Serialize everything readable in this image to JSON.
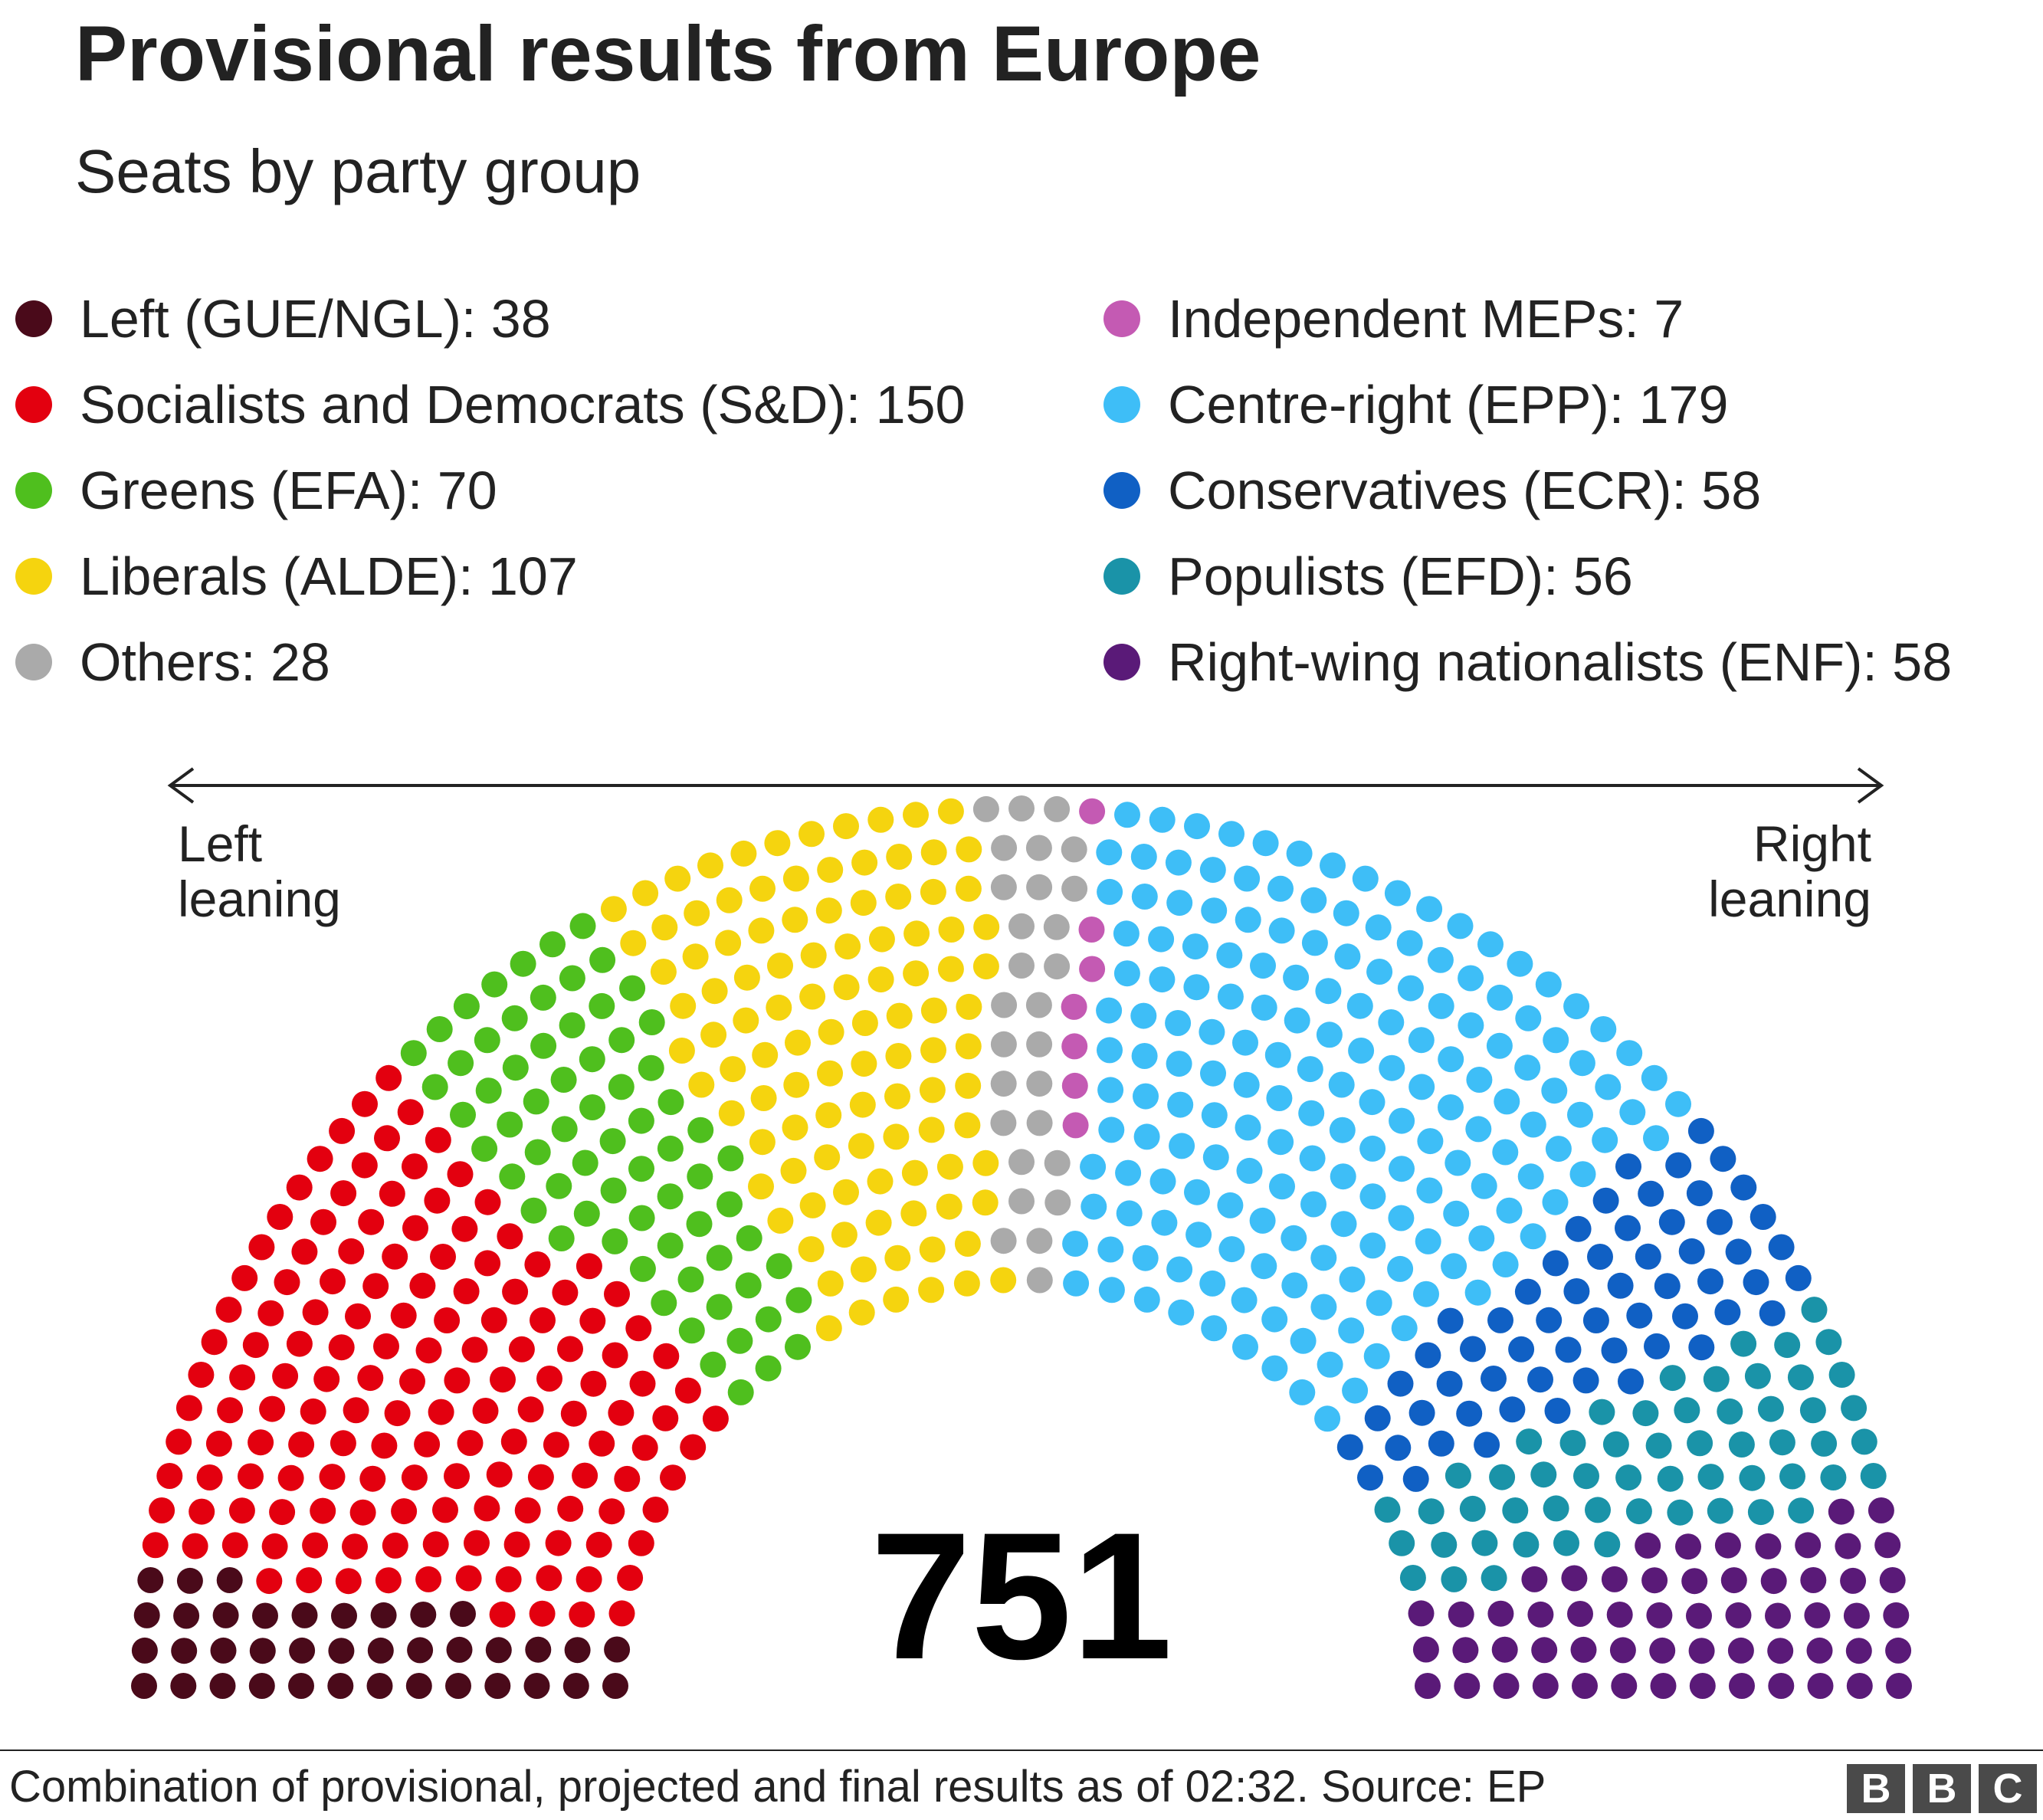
{
  "header": {
    "title": "Provisional results from Europe",
    "subtitle": "Seats by party group"
  },
  "legend": {
    "left": [
      {
        "label": "Left (GUE/NGL): 38",
        "color": "#4a0a1a"
      },
      {
        "label": "Socialists and Democrats (S&D): 150",
        "color": "#e3000f"
      },
      {
        "label": "Greens (EFA): 70",
        "color": "#4fbf1e"
      },
      {
        "label": "Liberals (ALDE): 107",
        "color": "#f5d40f"
      },
      {
        "label": "Others: 28",
        "color": "#aaaaaa"
      }
    ],
    "right": [
      {
        "label": "Independent MEPs: 7",
        "color": "#c45ab3"
      },
      {
        "label": "Centre-right (EPP): 179",
        "color": "#3ebef7"
      },
      {
        "label": "Conservatives (ECR): 58",
        "color": "#1060c4"
      },
      {
        "label": "Populists (EFD): 56",
        "color": "#1a93a8"
      },
      {
        "label": "Right-wing nationalists (ENF): 58",
        "color": "#5a1a78"
      }
    ]
  },
  "direction": {
    "left_line1": "Left",
    "left_line2": "leaning",
    "right_line1": "Right",
    "right_line2": "leaning"
  },
  "chart_data": {
    "type": "parliament",
    "title": "Provisional results from Europe",
    "subtitle": "Seats by party group",
    "total_seats": 751,
    "total_label": "751",
    "series": [
      {
        "name": "Left (GUE/NGL)",
        "value": 38,
        "color": "#4a0a1a"
      },
      {
        "name": "Socialists and Democrats (S&D)",
        "value": 150,
        "color": "#e3000f"
      },
      {
        "name": "Greens (EFA)",
        "value": 70,
        "color": "#4fbf1e"
      },
      {
        "name": "Liberals (ALDE)",
        "value": 107,
        "color": "#f5d40f"
      },
      {
        "name": "Others",
        "value": 28,
        "color": "#aaaaaa"
      },
      {
        "name": "Independent MEPs",
        "value": 7,
        "color": "#c45ab3"
      },
      {
        "name": "Centre-right (EPP)",
        "value": 179,
        "color": "#3ebef7"
      },
      {
        "name": "Conservatives (ECR)",
        "value": 58,
        "color": "#1060c4"
      },
      {
        "name": "Populists (EFD)",
        "value": 56,
        "color": "#1a93a8"
      },
      {
        "name": "Right-wing nationalists (ENF)",
        "value": 58,
        "color": "#5a1a78"
      }
    ]
  },
  "footer": {
    "note": "Combination of provisional, projected and final results as of 02:32. Source: EP",
    "logo": [
      "B",
      "B",
      "C"
    ]
  }
}
